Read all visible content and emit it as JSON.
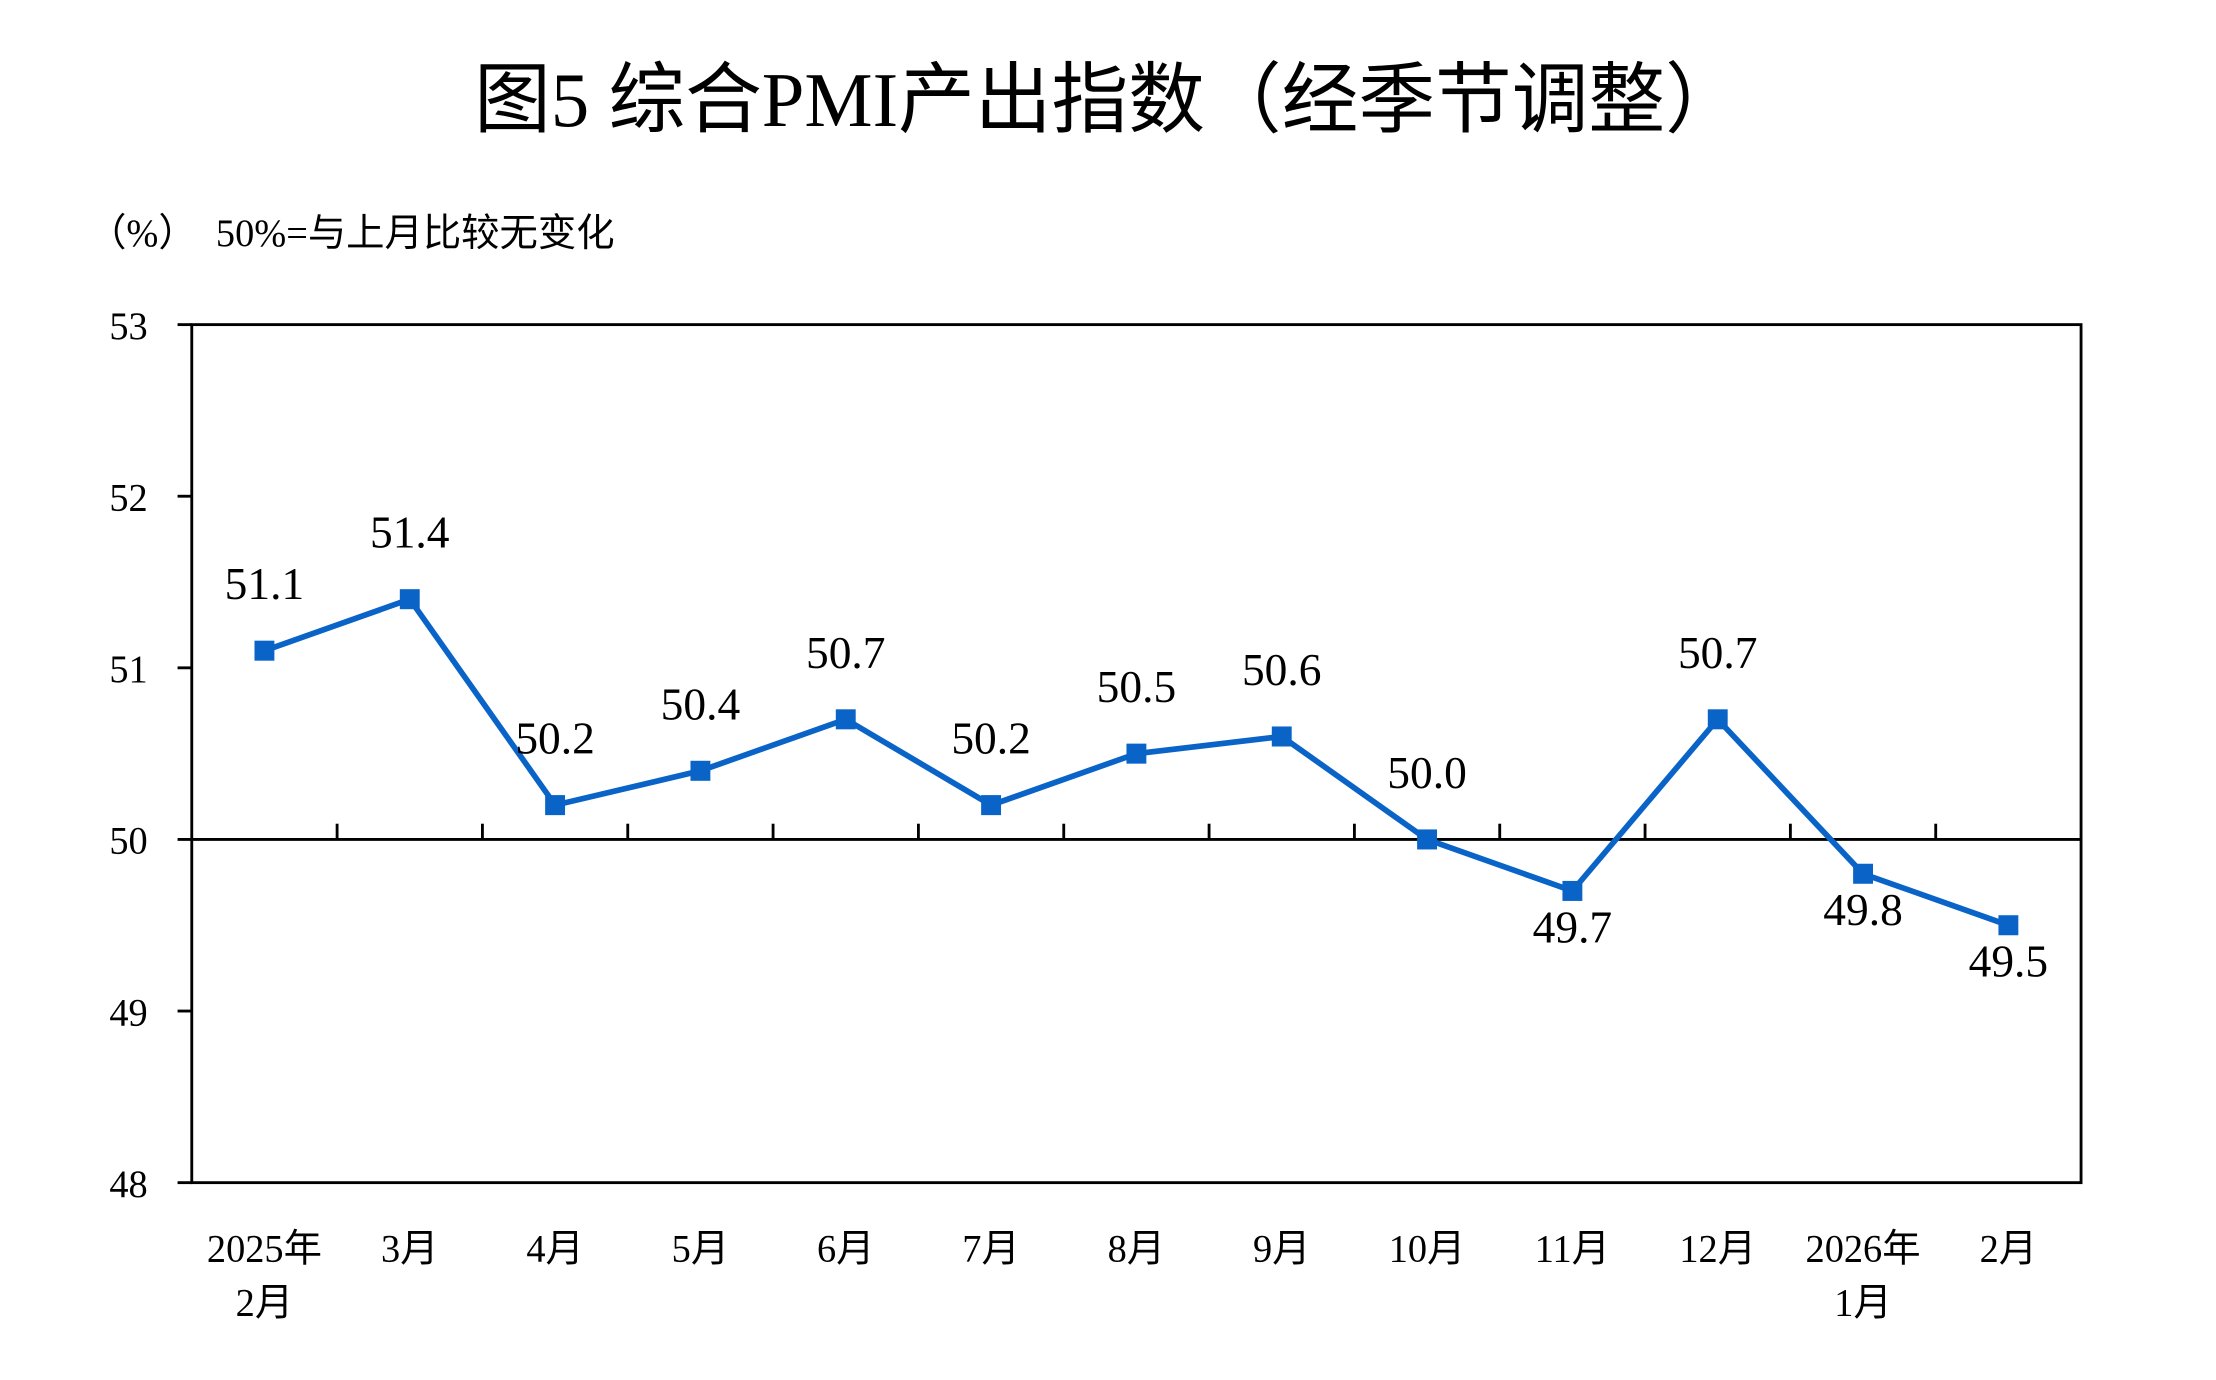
{
  "chart_data": {
    "type": "line",
    "title": "图5  综合PMI产出指数（经季节调整）",
    "y_unit": "（%）",
    "note": "50%=与上月比较无变化",
    "categories": [
      [
        "2025年",
        "2月"
      ],
      [
        "3月"
      ],
      [
        "4月"
      ],
      [
        "5月"
      ],
      [
        "6月"
      ],
      [
        "7月"
      ],
      [
        "8月"
      ],
      [
        "9月"
      ],
      [
        "10月"
      ],
      [
        "11月"
      ],
      [
        "12月"
      ],
      [
        "2026年",
        "1月"
      ],
      [
        "2月"
      ]
    ],
    "series": [
      {
        "color": "#0a64c8",
        "values": [
          51.1,
          51.4,
          50.2,
          50.4,
          50.7,
          50.2,
          50.5,
          50.6,
          50.0,
          49.7,
          50.7,
          49.8,
          49.5
        ],
        "value_labels": [
          "51.1",
          "51.4",
          "50.2",
          "50.4",
          "50.7",
          "50.2",
          "50.5",
          "50.6",
          "50.0",
          "49.7",
          "50.7",
          "49.8",
          "49.5"
        ]
      }
    ],
    "ylim": [
      48,
      53
    ],
    "yticks": [
      48,
      49,
      50,
      51,
      52,
      53
    ],
    "baseline": 50
  }
}
